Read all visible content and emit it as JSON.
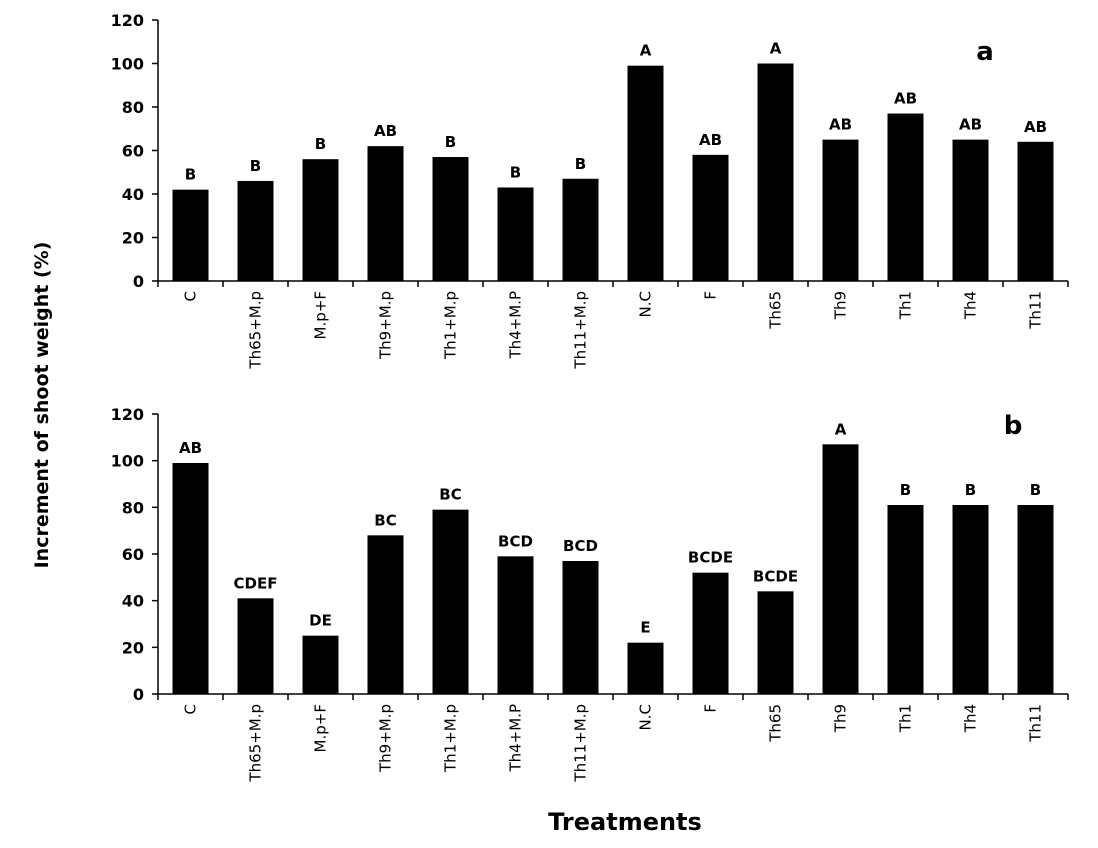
{
  "ylabel": "Increment of shoot weight (%)",
  "xlabel": "Treatments",
  "colors": {
    "bar": "#000000",
    "axis": "#000000",
    "background": "#ffffff"
  },
  "chart_data": [
    {
      "type": "bar",
      "panel": "a",
      "categories": [
        "C",
        "Th65+M.p",
        "M.p+F",
        "Th9+M.p",
        "Th1+M.p",
        "Th4+M.P",
        "Th11+M.p",
        "N.C",
        "F",
        "Th65",
        "Th9",
        "Th1",
        "Th4",
        "Th11"
      ],
      "values": [
        42,
        46,
        56,
        62,
        57,
        43,
        47,
        99,
        58,
        100,
        65,
        77,
        65,
        64
      ],
      "labels": [
        "B",
        "B",
        "B",
        "AB",
        "B",
        "B",
        "B",
        "A",
        "AB",
        "A",
        "AB",
        "AB",
        "AB",
        "AB"
      ],
      "ylim": [
        0,
        120
      ],
      "yticks": [
        0,
        20,
        40,
        60,
        80,
        100,
        120
      ],
      "grid": false,
      "legend": "none"
    },
    {
      "type": "bar",
      "panel": "b",
      "categories": [
        "C",
        "Th65+M.p",
        "M.p+F",
        "Th9+M.p",
        "Th1+M.p",
        "Th4+M.P",
        "Th11+M.p",
        "N.C",
        "F",
        "Th65",
        "Th9",
        "Th1",
        "Th4",
        "Th11"
      ],
      "values": [
        99,
        41,
        25,
        68,
        79,
        59,
        57,
        22,
        52,
        44,
        107,
        81,
        81,
        81
      ],
      "labels": [
        "AB",
        "CDEF",
        "DE",
        "BC",
        "BC",
        "BCD",
        "BCD",
        "E",
        "BCDE",
        "BCDE",
        "A",
        "B",
        "B",
        "B"
      ],
      "ylim": [
        0,
        120
      ],
      "yticks": [
        0,
        20,
        40,
        60,
        80,
        100,
        120
      ],
      "grid": false,
      "legend": "none"
    }
  ]
}
